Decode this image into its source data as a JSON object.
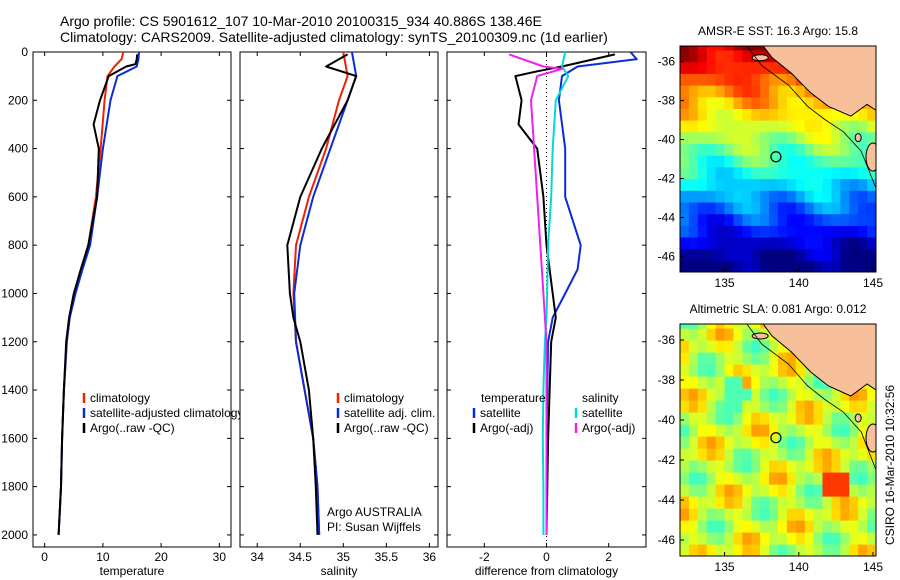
{
  "header": {
    "line1": "Argo profile: CS 5901612_107 10-Mar-2010 20100315_934 40.886S 138.46E",
    "line2": "Climatology: CARS2009. Satellite-adjusted climatology: synTS_20100309.nc (1d earlier)"
  },
  "footer_stamp": "CSIRO 16-Mar-2010 10:32:56",
  "colors": {
    "climatology": "#ee2200",
    "satellite": "#0a2bd6",
    "argo": "#000000",
    "salinity_satellite": "#00d8e0",
    "salinity_argo": "#ee22ee",
    "land": "#f7c09a"
  },
  "chart_data": [
    {
      "type": "line",
      "xlabel": "temperature",
      "xlim": [
        -2,
        32
      ],
      "xticks": [
        0,
        10,
        20,
        30
      ],
      "ylim": [
        2050,
        0
      ],
      "yticks": [
        0,
        200,
        400,
        600,
        800,
        1000,
        1200,
        1400,
        1600,
        1800,
        2000
      ],
      "legend": {
        "placement": "lower-right",
        "entries": [
          "climatology",
          "satellite-adjusted climatology",
          "Argo(..raw -QC)"
        ]
      },
      "series": [
        {
          "name": "climatology",
          "color_key": "climatology",
          "x": [
            13.5,
            13.2,
            12.0,
            10.8,
            10.3,
            9.6,
            8.8,
            7.5,
            6.3,
            5.2,
            4.3,
            3.8,
            3.3,
            3.0,
            2.8,
            2.6,
            2.4
          ],
          "y": [
            0,
            30,
            60,
            100,
            200,
            400,
            600,
            800,
            900,
            1000,
            1100,
            1200,
            1400,
            1600,
            1800,
            1900,
            2000
          ]
        },
        {
          "name": "satellite-adjusted climatology",
          "color_key": "satellite",
          "x": [
            16.2,
            16.1,
            15.8,
            12.5,
            11.3,
            10.0,
            9.0,
            7.8,
            6.5,
            5.3,
            4.3,
            3.8,
            3.3,
            3.0,
            2.8,
            2.6,
            2.4
          ],
          "y": [
            0,
            30,
            60,
            100,
            200,
            400,
            600,
            800,
            900,
            1000,
            1100,
            1200,
            1400,
            1600,
            1800,
            1900,
            2000
          ]
        },
        {
          "name": "Argo(..raw -QC)",
          "color_key": "argo",
          "x": [
            15.9,
            15.8,
            15.6,
            14.0,
            11.0,
            9.5,
            8.4,
            9.3,
            9.0,
            7.5,
            6.2,
            5.0,
            4.2,
            3.7,
            3.3,
            3.0,
            2.8,
            2.6,
            2.4
          ],
          "y": [
            10,
            30,
            50,
            60,
            100,
            200,
            300,
            400,
            600,
            800,
            900,
            1000,
            1100,
            1200,
            1400,
            1600,
            1800,
            1900,
            2000
          ]
        }
      ]
    },
    {
      "type": "line",
      "xlabel": "salinity",
      "xlim": [
        33.8,
        36.1
      ],
      "xticks": [
        34,
        34.5,
        35,
        35.5,
        36
      ],
      "ylim": [
        2050,
        0
      ],
      "legend": {
        "placement": "lower-right",
        "entries": [
          "climatology",
          "satellite adj. clim.",
          "Argo(..raw -QC)"
        ]
      },
      "annotations": [
        "Argo AUSTRALIA",
        "PI: Susan Wijffels"
      ],
      "series": [
        {
          "name": "climatology",
          "color_key": "climatology",
          "x": [
            35.0,
            35.05,
            34.95,
            34.8,
            34.6,
            34.45,
            34.42,
            34.45,
            34.55,
            34.65,
            34.7,
            34.72
          ],
          "y": [
            0,
            100,
            200,
            400,
            600,
            800,
            1000,
            1200,
            1400,
            1600,
            1800,
            2000
          ]
        },
        {
          "name": "satellite adj. clim.",
          "color_key": "satellite",
          "x": [
            35.1,
            35.15,
            35.05,
            34.85,
            34.65,
            34.5,
            34.43,
            34.45,
            34.55,
            34.65,
            34.7,
            34.72
          ],
          "y": [
            0,
            100,
            200,
            400,
            600,
            800,
            1000,
            1200,
            1400,
            1600,
            1800,
            2000
          ]
        },
        {
          "name": "Argo(..raw -QC)",
          "color_key": "argo",
          "x": [
            35.05,
            34.8,
            35.15,
            35.05,
            34.75,
            34.5,
            34.35,
            34.38,
            34.42,
            34.5,
            34.6,
            34.65,
            34.68,
            34.7
          ],
          "y": [
            10,
            60,
            100,
            200,
            400,
            600,
            800,
            1000,
            1100,
            1200,
            1400,
            1600,
            1800,
            2000
          ]
        }
      ]
    },
    {
      "type": "line",
      "xlabel": "difference from climatology",
      "xlim": [
        -3.2,
        3.2
      ],
      "xticks": [
        -2,
        0,
        2
      ],
      "ylim": [
        2050,
        0
      ],
      "legend": {
        "placement": "lower-center",
        "columns": [
          {
            "title": "temperature",
            "entries": [
              "satellite",
              "Argo(-adj)"
            ]
          },
          {
            "title": "salinity",
            "entries": [
              "satellite",
              "Argo(-adj)"
            ]
          }
        ]
      },
      "series": [
        {
          "name": "satellite",
          "group": "temperature",
          "color_key": "satellite",
          "x": [
            2.7,
            2.9,
            1.0,
            0.5,
            0.4,
            0.6,
            0.6,
            1.1,
            1.0,
            0.6,
            0.2,
            0.05,
            0.0,
            0.0
          ],
          "y": [
            0,
            30,
            60,
            100,
            200,
            400,
            600,
            800,
            900,
            1000,
            1100,
            1200,
            1600,
            2000
          ]
        },
        {
          "name": "Argo(-adj)",
          "group": "temperature",
          "color_key": "argo",
          "x": [
            2.2,
            0.5,
            -0.3,
            -1.0,
            -0.8,
            -0.9,
            -0.3,
            -0.1,
            0.0,
            0.2,
            0.3,
            0.15,
            0.05,
            0.0
          ],
          "y": [
            10,
            60,
            80,
            100,
            200,
            300,
            400,
            600,
            800,
            1000,
            1100,
            1200,
            1600,
            2000
          ]
        },
        {
          "name": "satellite",
          "group": "salinity",
          "color_key": "salinity_satellite",
          "x": [
            0.6,
            0.5,
            0.7,
            0.3,
            0.2,
            0.15,
            0.05,
            0.02,
            0.0,
            -0.05,
            -0.1,
            -0.12,
            -0.1,
            -0.1
          ],
          "y": [
            0,
            60,
            100,
            200,
            400,
            600,
            800,
            1000,
            1100,
            1200,
            1400,
            1600,
            1800,
            2000
          ]
        },
        {
          "name": "Argo(-adj)",
          "group": "salinity",
          "color_key": "salinity_argo",
          "x": [
            -1.2,
            -0.1,
            0.5,
            -0.3,
            -0.5,
            -0.4,
            -0.3,
            -0.2,
            -0.1,
            -0.05,
            0.0,
            0.0,
            0.0,
            0.0
          ],
          "y": [
            10,
            60,
            70,
            100,
            200,
            400,
            600,
            800,
            1000,
            1100,
            1200,
            1400,
            1600,
            2000
          ]
        }
      ]
    },
    {
      "type": "heatmap",
      "title": "AMSR-E SST: 16.3 Argo: 15.8",
      "xlim": [
        132,
        145.2
      ],
      "ylim": [
        -46.8,
        -35.2
      ],
      "xticks": [
        135,
        140,
        145
      ],
      "yticks": [
        -36,
        -38,
        -40,
        -42,
        -44,
        -46
      ],
      "argo_position": {
        "lon": 138.46,
        "lat": -40.886
      },
      "colormap": "jet"
    },
    {
      "type": "heatmap",
      "title": "Altimetric SLA: 0.081 Argo: 0.012",
      "xlim": [
        132,
        145.2
      ],
      "ylim": [
        -46.8,
        -35.2
      ],
      "xticks": [
        135,
        140,
        145
      ],
      "yticks": [
        -36,
        -38,
        -40,
        -42,
        -44,
        -46
      ],
      "argo_position": {
        "lon": 138.46,
        "lat": -40.886
      },
      "colormap": "jet"
    }
  ]
}
